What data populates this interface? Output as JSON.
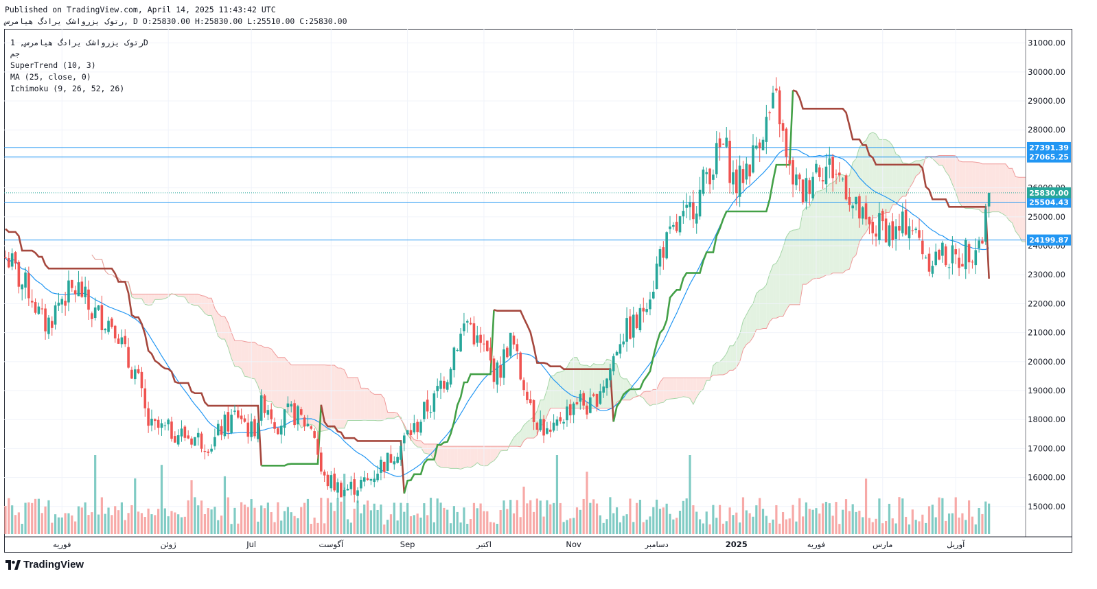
{
  "header": {
    "published": "Published on TradingView.com, April 14, 2025 11:43:42 UTC",
    "symbol_line": "رتوک یزرواشک یرادگ هیامرس, D O:25830.00 H:25830.00 L:25510.00 C:25830.00"
  },
  "legend": {
    "line1": "رتوک یزرواشک یرادگ هیامرس, 1D",
    "line2": "جم",
    "supertrend": "SuperTrend (10, 3)",
    "ma": "MA (25, close, 0)",
    "ichimoku": "Ichimoku (9, 26, 52, 26)"
  },
  "footer": {
    "brand": "TradingView"
  },
  "chart_data": {
    "type": "candlestick",
    "y_axis": {
      "min": 14000,
      "max": 31300,
      "ticks": [
        15000,
        16000,
        17000,
        18000,
        19000,
        20000,
        21000,
        22000,
        23000,
        24000,
        25000,
        26000,
        27000,
        28000,
        29000,
        30000,
        31000
      ],
      "tick_labels": [
        "15000.00",
        "16000.00",
        "17000.00",
        "18000.00",
        "19000.00",
        "20000.00",
        "21000.00",
        "22000.00",
        "23000.00",
        "24000.00",
        "25000.00",
        "26000.00",
        "27000.00",
        "28000.00",
        "29000.00",
        "30000.00",
        "31000.00"
      ]
    },
    "x_axis": {
      "labels": [
        {
          "text": "فوریه",
          "bar": 17
        },
        {
          "text": "ژوئن",
          "bar": 49
        },
        {
          "text": "Jul",
          "bar": 74
        },
        {
          "text": "آگوست",
          "bar": 98
        },
        {
          "text": "Sep",
          "bar": 121
        },
        {
          "text": "اکتبر",
          "bar": 144
        },
        {
          "text": "Nov",
          "bar": 171
        },
        {
          "text": "دسامبر",
          "bar": 196
        },
        {
          "text": "2025",
          "bar": 220,
          "bold": true
        },
        {
          "text": "فوریه",
          "bar": 244
        },
        {
          "text": "مارس",
          "bar": 264
        },
        {
          "text": "آوریل",
          "bar": 286
        }
      ]
    },
    "price_lines": [
      {
        "value": 27391.39,
        "label": "27391.39",
        "color": "#2196f3"
      },
      {
        "value": 27065.25,
        "label": "27065.25",
        "color": "#2196f3"
      },
      {
        "value": 25504.43,
        "label": "25504.43",
        "color": "#2196f3"
      },
      {
        "value": 24199.87,
        "label": "24199.87",
        "color": "#2196f3"
      }
    ],
    "last_price": {
      "value": 25830,
      "label": "25830.00",
      "color": "#26a69a"
    },
    "colors": {
      "up": "#26a69a",
      "down": "#ef5350",
      "ma": "#2196f3",
      "supertrend_up": "#43a047",
      "supertrend_down": "#a5473d",
      "kumo_bull": "#e3f2e1",
      "kumo_bear": "#fde4e1"
    },
    "ohlc_last": {
      "open": 25830,
      "high": 25830,
      "low": 25510,
      "close": 25830
    },
    "candles": {
      "count": 297,
      "first_open": 23600,
      "last_close": 25830
    },
    "volume_max_relative": 1.0
  }
}
